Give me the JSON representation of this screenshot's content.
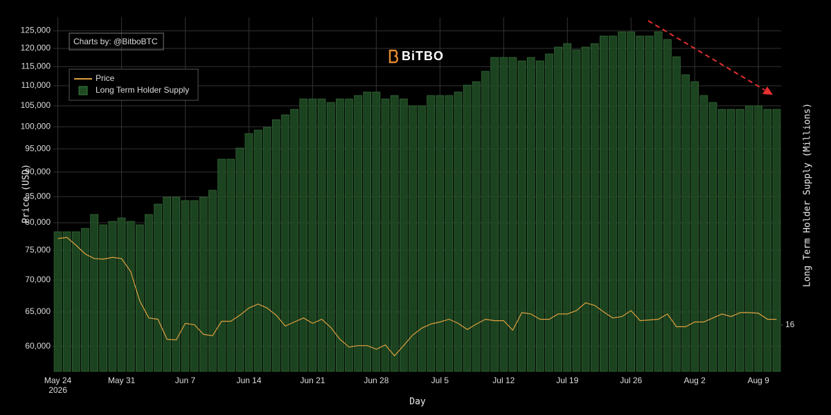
{
  "chart_data": {
    "type": "combo",
    "xlabel": "Day",
    "ylabel": "Price (USD)",
    "y2label": "Long Term Holder Supply (Millions)",
    "annotations": [
      "Charts by: @BitboBTC"
    ],
    "watermark": "BiTBO",
    "legend": "upper left",
    "grid": true,
    "ylog": true,
    "xlim": [
      "2026-05-23T12:00",
      "2026-08-11T12:00"
    ],
    "xticks": [
      {
        "value": "2026-05-24",
        "label": "May 24\n2026"
      },
      {
        "value": "2026-05-31",
        "label": "May 31"
      },
      {
        "value": "2026-06-07",
        "label": "Jun 7"
      },
      {
        "value": "2026-06-14",
        "label": "Jun 14"
      },
      {
        "value": "2026-06-21",
        "label": "Jun 21"
      },
      {
        "value": "2026-06-28",
        "label": "Jun 28"
      },
      {
        "value": "2026-07-05",
        "label": "Jul 5"
      },
      {
        "value": "2026-07-12",
        "label": "Jul 12"
      },
      {
        "value": "2026-07-19",
        "label": "Jul 19"
      },
      {
        "value": "2026-07-26",
        "label": "Jul 26"
      },
      {
        "value": "2026-08-02",
        "label": "Aug 2"
      },
      {
        "value": "2026-08-09",
        "label": "Aug 9"
      }
    ],
    "ylim": [
      56600,
      129000
    ],
    "yticks": [
      {
        "value": 60000,
        "label": "60,000"
      },
      {
        "value": 65000,
        "label": "65,000"
      },
      {
        "value": 70000,
        "label": "70,000"
      },
      {
        "value": 75000,
        "label": "75,000"
      },
      {
        "value": 80000,
        "label": "80,000"
      },
      {
        "value": 85000,
        "label": "85,000"
      },
      {
        "value": 90000,
        "label": "90,000"
      },
      {
        "value": 95000,
        "label": "95,000"
      },
      {
        "value": 100000,
        "label": "100,000"
      },
      {
        "value": 105000,
        "label": "105,000"
      },
      {
        "value": 110000,
        "label": "110,000"
      },
      {
        "value": 115000,
        "label": "115,000"
      },
      {
        "value": 120000,
        "label": "120,000"
      },
      {
        "value": 125000,
        "label": "125,000"
      }
    ],
    "y2lim": [
      15.866,
      16.89
    ],
    "y2ticks": [
      16
    ],
    "x": [
      "2026-05-24",
      "2026-05-25",
      "2026-05-26",
      "2026-05-27",
      "2026-05-28",
      "2026-05-29",
      "2026-05-30",
      "2026-05-31",
      "2026-06-01",
      "2026-06-02",
      "2026-06-03",
      "2026-06-04",
      "2026-06-05",
      "2026-06-06",
      "2026-06-07",
      "2026-06-08",
      "2026-06-09",
      "2026-06-10",
      "2026-06-11",
      "2026-06-12",
      "2026-06-13",
      "2026-06-14",
      "2026-06-15",
      "2026-06-16",
      "2026-06-17",
      "2026-06-18",
      "2026-06-19",
      "2026-06-20",
      "2026-06-21",
      "2026-06-22",
      "2026-06-23",
      "2026-06-24",
      "2026-06-25",
      "2026-06-26",
      "2026-06-27",
      "2026-06-28",
      "2026-06-29",
      "2026-06-30",
      "2026-07-01",
      "2026-07-02",
      "2026-07-03",
      "2026-07-04",
      "2026-07-05",
      "2026-07-06",
      "2026-07-07",
      "2026-07-08",
      "2026-07-09",
      "2026-07-10",
      "2026-07-11",
      "2026-07-12",
      "2026-07-13",
      "2026-07-14",
      "2026-07-15",
      "2026-07-16",
      "2026-07-17",
      "2026-07-18",
      "2026-07-19",
      "2026-07-20",
      "2026-07-21",
      "2026-07-22",
      "2026-07-23",
      "2026-07-24",
      "2026-07-25",
      "2026-07-26",
      "2026-07-27",
      "2026-07-28",
      "2026-07-29",
      "2026-07-30",
      "2026-07-31",
      "2026-08-01",
      "2026-08-02",
      "2026-08-03",
      "2026-08-04",
      "2026-08-05",
      "2026-08-06",
      "2026-08-07",
      "2026-08-08",
      "2026-08-09",
      "2026-08-10",
      "2026-08-11"
    ],
    "series": [
      {
        "name": "Price",
        "type": "line",
        "color": "#e0a040",
        "values": [
          77100,
          77300,
          75900,
          74400,
          73600,
          73500,
          73800,
          73600,
          71400,
          66700,
          64100,
          63900,
          61000,
          60900,
          63300,
          63100,
          61700,
          61500,
          63600,
          63600,
          64500,
          65600,
          66200,
          65600,
          64500,
          62900,
          63500,
          64100,
          63300,
          63900,
          62700,
          61000,
          59900,
          60100,
          60100,
          59600,
          60200,
          58700,
          60100,
          61600,
          62600,
          63200,
          63500,
          63900,
          63300,
          62400,
          63200,
          63900,
          63700,
          63700,
          62300,
          64900,
          64700,
          63900,
          63900,
          64700,
          64700,
          65200,
          66400,
          66000,
          65000,
          64100,
          64300,
          65200,
          63700,
          63800,
          63900,
          64700,
          62800,
          62800,
          63500,
          63500,
          64100,
          64700,
          64300,
          64900,
          64900,
          64800,
          63900,
          63900
        ]
      },
      {
        "name": "Long Term Holder Supply",
        "type": "bar",
        "axis": "y2",
        "color": "#1f4a22",
        "values": [
          16.27,
          16.27,
          16.27,
          16.28,
          16.32,
          16.29,
          16.3,
          16.31,
          16.3,
          16.29,
          16.32,
          16.35,
          16.37,
          16.37,
          16.36,
          16.36,
          16.37,
          16.39,
          16.48,
          16.48,
          16.512,
          16.554,
          16.564,
          16.572,
          16.594,
          16.608,
          16.624,
          16.654,
          16.654,
          16.654,
          16.644,
          16.654,
          16.654,
          16.664,
          16.674,
          16.674,
          16.654,
          16.664,
          16.654,
          16.634,
          16.634,
          16.664,
          16.664,
          16.664,
          16.674,
          16.694,
          16.704,
          16.734,
          16.774,
          16.774,
          16.774,
          16.764,
          16.774,
          16.764,
          16.784,
          16.804,
          16.814,
          16.796,
          16.804,
          16.814,
          16.836,
          16.836,
          16.848,
          16.848,
          16.836,
          16.836,
          16.848,
          16.826,
          16.776,
          16.724,
          16.704,
          16.664,
          16.644,
          16.624,
          16.624,
          16.624,
          16.634,
          16.634,
          16.624,
          16.624
        ]
      }
    ]
  }
}
